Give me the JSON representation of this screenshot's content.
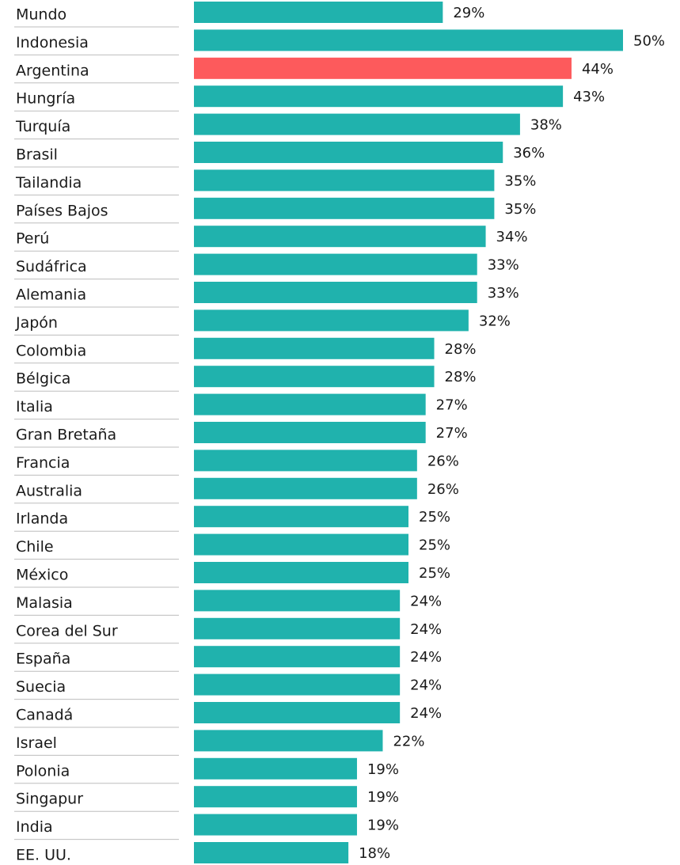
{
  "chart_data": {
    "type": "bar",
    "orientation": "horizontal",
    "categories": [
      "Mundo",
      "Indonesia",
      "Argentina",
      "Hungría",
      "Turquía",
      "Brasil",
      "Tailandia",
      "Países Bajos",
      "Perú",
      "Sudáfrica",
      "Alemania",
      "Japón",
      "Colombia",
      "Bélgica",
      "Italia",
      "Gran Bretaña",
      "Francia",
      "Australia",
      "Irlanda",
      "Chile",
      "México",
      "Malasia",
      "Corea del Sur",
      "España",
      "Suecia",
      "Canadá",
      "Israel",
      "Polonia",
      "Singapur",
      "India",
      "EE. UU."
    ],
    "values": [
      29,
      50,
      44,
      43,
      38,
      36,
      35,
      35,
      34,
      33,
      33,
      32,
      28,
      28,
      27,
      27,
      26,
      26,
      25,
      25,
      25,
      24,
      24,
      24,
      24,
      24,
      22,
      19,
      19,
      19,
      18
    ],
    "value_labels": [
      "29%",
      "50%",
      "44%",
      "43%",
      "38%",
      "36%",
      "35%",
      "35%",
      "34%",
      "33%",
      "33%",
      "32%",
      "28%",
      "28%",
      "27%",
      "27%",
      "26%",
      "26%",
      "25%",
      "25%",
      "25%",
      "24%",
      "24%",
      "24%",
      "24%",
      "24%",
      "22%",
      "19%",
      "19%",
      "19%",
      "18%"
    ],
    "colors": [
      "#20b2ad",
      "#20b2ad",
      "#fd5a5c",
      "#20b2ad",
      "#20b2ad",
      "#20b2ad",
      "#20b2ad",
      "#20b2ad",
      "#20b2ad",
      "#20b2ad",
      "#20b2ad",
      "#20b2ad",
      "#20b2ad",
      "#20b2ad",
      "#20b2ad",
      "#20b2ad",
      "#20b2ad",
      "#20b2ad",
      "#20b2ad",
      "#20b2ad",
      "#20b2ad",
      "#20b2ad",
      "#20b2ad",
      "#20b2ad",
      "#20b2ad",
      "#20b2ad",
      "#20b2ad",
      "#20b2ad",
      "#20b2ad",
      "#20b2ad",
      "#20b2ad"
    ]
  }
}
